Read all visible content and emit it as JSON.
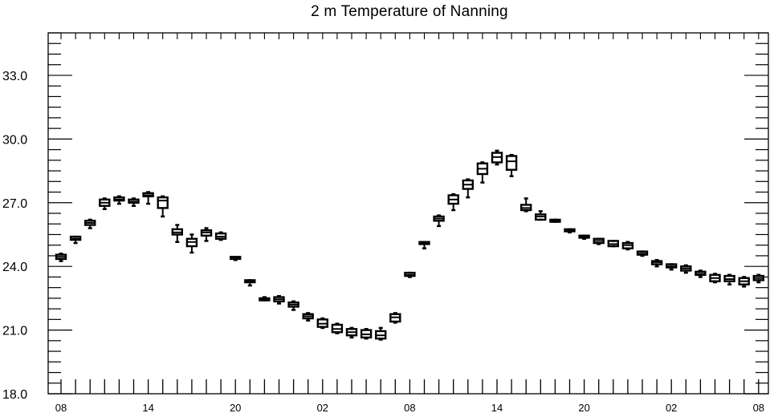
{
  "chart_data": {
    "type": "box",
    "title": "2 m Temperature of Nanning",
    "xlabel": "",
    "ylabel": "",
    "ylim": [
      18.0,
      35.0
    ],
    "y_ticks": [
      "18.0",
      "21.0",
      "24.0",
      "27.0",
      "30.0",
      "33.0"
    ],
    "x_tick_labels": [
      "08",
      "14",
      "20",
      "02",
      "08",
      "14",
      "20",
      "02",
      "08"
    ],
    "x_tick_hours": [
      0,
      6,
      12,
      18,
      24,
      30,
      36,
      42,
      48
    ],
    "grid": false,
    "series": [
      {
        "boxes": [
          {
            "hour": 0,
            "q1": 24.35,
            "median": 24.45,
            "q3": 24.55,
            "low": 24.25,
            "high": 24.6
          },
          {
            "hour": 1,
            "q1": 25.25,
            "median": 25.3,
            "q3": 25.4,
            "low": 25.1,
            "high": 25.4
          },
          {
            "hour": 2,
            "q1": 25.95,
            "median": 26.05,
            "q3": 26.15,
            "low": 25.8,
            "high": 26.2
          },
          {
            "hour": 3,
            "q1": 26.85,
            "median": 27.0,
            "q3": 27.15,
            "low": 26.7,
            "high": 27.2
          },
          {
            "hour": 4,
            "q1": 27.1,
            "median": 27.15,
            "q3": 27.25,
            "low": 26.95,
            "high": 27.3
          },
          {
            "hour": 5,
            "q1": 27.0,
            "median": 27.05,
            "q3": 27.15,
            "low": 26.85,
            "high": 27.2
          },
          {
            "hour": 6,
            "q1": 27.3,
            "median": 27.35,
            "q3": 27.45,
            "low": 26.95,
            "high": 27.5
          },
          {
            "hour": 7,
            "q1": 26.75,
            "median": 27.1,
            "q3": 27.25,
            "low": 26.35,
            "high": 27.3
          },
          {
            "hour": 8,
            "q1": 25.5,
            "median": 25.6,
            "q3": 25.75,
            "low": 25.15,
            "high": 25.95
          },
          {
            "hour": 9,
            "q1": 24.95,
            "median": 25.15,
            "q3": 25.3,
            "low": 24.65,
            "high": 25.5
          },
          {
            "hour": 10,
            "q1": 25.45,
            "median": 25.6,
            "q3": 25.7,
            "low": 25.2,
            "high": 25.8
          },
          {
            "hour": 11,
            "q1": 25.3,
            "median": 25.4,
            "q3": 25.55,
            "low": 25.25,
            "high": 25.6
          },
          {
            "hour": 12,
            "q1": 24.35,
            "median": 24.4,
            "q3": 24.45,
            "low": 24.3,
            "high": 24.45
          },
          {
            "hour": 13,
            "q1": 23.25,
            "median": 23.3,
            "q3": 23.35,
            "low": 23.1,
            "high": 23.35
          },
          {
            "hour": 14,
            "q1": 22.4,
            "median": 22.45,
            "q3": 22.5,
            "low": 22.4,
            "high": 22.55
          },
          {
            "hour": 15,
            "q1": 22.35,
            "median": 22.45,
            "q3": 22.55,
            "low": 22.25,
            "high": 22.6
          },
          {
            "hour": 16,
            "q1": 22.1,
            "median": 22.2,
            "q3": 22.3,
            "low": 21.95,
            "high": 22.35
          },
          {
            "hour": 17,
            "q1": 21.55,
            "median": 21.65,
            "q3": 21.75,
            "low": 21.45,
            "high": 21.8
          },
          {
            "hour": 18,
            "q1": 21.15,
            "median": 21.3,
            "q3": 21.5,
            "low": 21.1,
            "high": 21.55
          },
          {
            "hour": 19,
            "q1": 20.9,
            "median": 21.05,
            "q3": 21.25,
            "low": 20.85,
            "high": 21.3
          },
          {
            "hour": 20,
            "q1": 20.75,
            "median": 20.9,
            "q3": 21.05,
            "low": 20.65,
            "high": 21.1
          },
          {
            "hour": 21,
            "q1": 20.65,
            "median": 20.8,
            "q3": 21.0,
            "low": 20.6,
            "high": 21.05
          },
          {
            "hour": 22,
            "q1": 20.6,
            "median": 20.75,
            "q3": 20.95,
            "low": 20.55,
            "high": 21.1
          },
          {
            "hour": 23,
            "q1": 21.4,
            "median": 21.6,
            "q3": 21.75,
            "low": 21.35,
            "high": 21.8
          },
          {
            "hour": 24,
            "q1": 23.55,
            "median": 23.6,
            "q3": 23.7,
            "low": 23.5,
            "high": 23.7
          },
          {
            "hour": 25,
            "q1": 25.05,
            "median": 25.1,
            "q3": 25.15,
            "low": 24.85,
            "high": 25.15
          },
          {
            "hour": 26,
            "q1": 26.15,
            "median": 26.25,
            "q3": 26.35,
            "low": 25.9,
            "high": 26.4
          },
          {
            "hour": 27,
            "q1": 26.95,
            "median": 27.15,
            "q3": 27.35,
            "low": 26.65,
            "high": 27.4
          },
          {
            "hour": 28,
            "q1": 27.65,
            "median": 27.85,
            "q3": 28.05,
            "low": 27.25,
            "high": 28.1
          },
          {
            "hour": 29,
            "q1": 28.35,
            "median": 28.6,
            "q3": 28.85,
            "low": 27.95,
            "high": 28.9
          },
          {
            "hour": 30,
            "q1": 28.9,
            "median": 29.15,
            "q3": 29.35,
            "low": 28.8,
            "high": 29.45
          },
          {
            "hour": 31,
            "q1": 28.55,
            "median": 28.95,
            "q3": 29.2,
            "low": 28.25,
            "high": 29.25
          },
          {
            "hour": 32,
            "q1": 26.65,
            "median": 26.75,
            "q3": 26.9,
            "low": 26.6,
            "high": 27.2
          },
          {
            "hour": 33,
            "q1": 26.2,
            "median": 26.35,
            "q3": 26.45,
            "low": 26.2,
            "high": 26.6
          },
          {
            "hour": 34,
            "q1": 26.1,
            "median": 26.15,
            "q3": 26.2,
            "low": 26.1,
            "high": 26.2
          },
          {
            "hour": 35,
            "q1": 25.65,
            "median": 25.7,
            "q3": 25.75,
            "low": 25.6,
            "high": 25.75
          },
          {
            "hour": 36,
            "q1": 25.35,
            "median": 25.4,
            "q3": 25.45,
            "low": 25.3,
            "high": 25.45
          },
          {
            "hour": 37,
            "q1": 25.1,
            "median": 25.2,
            "q3": 25.3,
            "low": 25.05,
            "high": 25.3
          },
          {
            "hour": 38,
            "q1": 24.95,
            "median": 25.05,
            "q3": 25.2,
            "low": 24.95,
            "high": 25.2
          },
          {
            "hour": 39,
            "q1": 24.85,
            "median": 25.0,
            "q3": 25.1,
            "low": 24.8,
            "high": 25.15
          },
          {
            "hour": 40,
            "q1": 24.55,
            "median": 24.6,
            "q3": 24.7,
            "low": 24.5,
            "high": 24.7
          },
          {
            "hour": 41,
            "q1": 24.1,
            "median": 24.2,
            "q3": 24.25,
            "low": 24.0,
            "high": 24.3
          },
          {
            "hour": 42,
            "q1": 23.95,
            "median": 24.0,
            "q3": 24.1,
            "low": 23.85,
            "high": 24.1
          },
          {
            "hour": 43,
            "q1": 23.8,
            "median": 23.9,
            "q3": 24.0,
            "low": 23.7,
            "high": 24.05
          },
          {
            "hour": 44,
            "q1": 23.6,
            "median": 23.65,
            "q3": 23.75,
            "low": 23.5,
            "high": 23.8
          },
          {
            "hour": 45,
            "q1": 23.3,
            "median": 23.45,
            "q3": 23.6,
            "low": 23.25,
            "high": 23.65
          },
          {
            "hour": 46,
            "q1": 23.3,
            "median": 23.4,
            "q3": 23.55,
            "low": 23.15,
            "high": 23.6
          },
          {
            "hour": 47,
            "q1": 23.15,
            "median": 23.3,
            "q3": 23.45,
            "low": 23.05,
            "high": 23.5
          },
          {
            "hour": 48,
            "q1": 23.35,
            "median": 23.45,
            "q3": 23.55,
            "low": 23.25,
            "high": 23.6
          }
        ]
      }
    ]
  }
}
